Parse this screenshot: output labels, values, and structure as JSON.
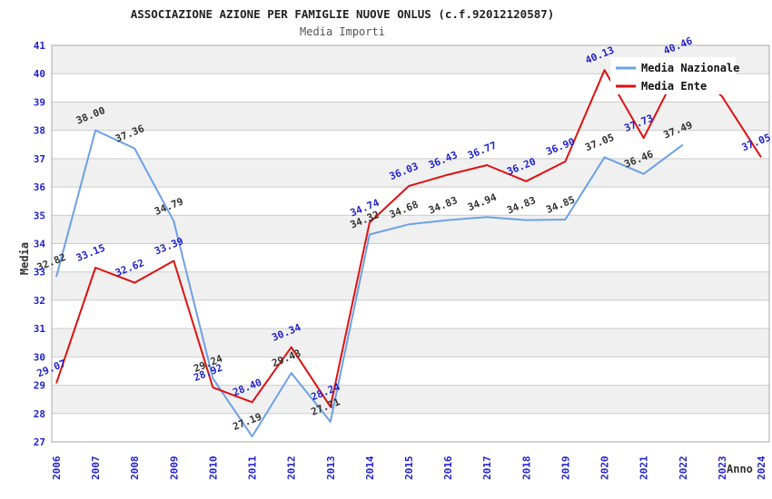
{
  "header": {
    "title": "ASSOCIAZIONE AZIONE PER FAMIGLIE NUOVE ONLUS (c.f.92012120587)",
    "subtitle": "Media Importi"
  },
  "legend": {
    "position": "top-right",
    "items": [
      {
        "label": "Media Nazionale",
        "color": "#6ca0e8"
      },
      {
        "label": "Media Ente",
        "color": "#e01010"
      }
    ]
  },
  "axes": {
    "y_title": "Media",
    "x_title": "Anno",
    "y_ticks": [
      41,
      40,
      39,
      38,
      37,
      36,
      35,
      34,
      33,
      32,
      31,
      30,
      29,
      28,
      27
    ],
    "x_ticks": [
      "2006",
      "2007",
      "2008",
      "2009",
      "2010",
      "2011",
      "2012",
      "2013",
      "2014",
      "2015",
      "2016",
      "2017",
      "2018",
      "2019",
      "2020",
      "2021",
      "2022",
      "2023",
      "2024"
    ]
  },
  "chart_data": {
    "type": "line",
    "title": "ASSOCIAZIONE AZIONE PER FAMIGLIE NUOVE ONLUS (c.f.92012120587)",
    "subtitle": "Media Importi",
    "xlabel": "Anno",
    "ylabel": "Media",
    "ylim": [
      27,
      41
    ],
    "y_tick_step": 1,
    "grid": "horizontal-lines-with-alternating-stripes",
    "legend_position": "top-right",
    "x": [
      "2006",
      "2007",
      "2008",
      "2009",
      "2010",
      "2011",
      "2012",
      "2013",
      "2014",
      "2015",
      "2016",
      "2017",
      "2018",
      "2019",
      "2020",
      "2021",
      "2022",
      "2023",
      "2024"
    ],
    "series": [
      {
        "name": "Media Nazionale",
        "color": "#6ca0e8",
        "label_color": "#333333",
        "values": [
          32.82,
          38.0,
          37.36,
          34.79,
          29.24,
          27.19,
          29.43,
          27.71,
          34.32,
          34.68,
          34.83,
          34.94,
          34.83,
          34.85,
          37.05,
          36.46,
          37.49,
          null,
          null
        ],
        "hidden_value_labels": []
      },
      {
        "name": "Media Ente",
        "color": "#e01010",
        "label_color": "#2222cc",
        "values": [
          29.07,
          33.15,
          32.62,
          33.39,
          28.92,
          28.4,
          30.34,
          28.24,
          34.74,
          36.03,
          36.43,
          36.77,
          36.2,
          36.9,
          40.13,
          37.73,
          40.46,
          39.2,
          37.05
        ],
        "hidden_value_labels": [
          "2023"
        ]
      }
    ],
    "colors": {
      "tick_label": "#2222cc",
      "grid_line": "#cccccc",
      "stripe": "#f0f0f0",
      "plot_border": "#aaaaaa"
    }
  }
}
